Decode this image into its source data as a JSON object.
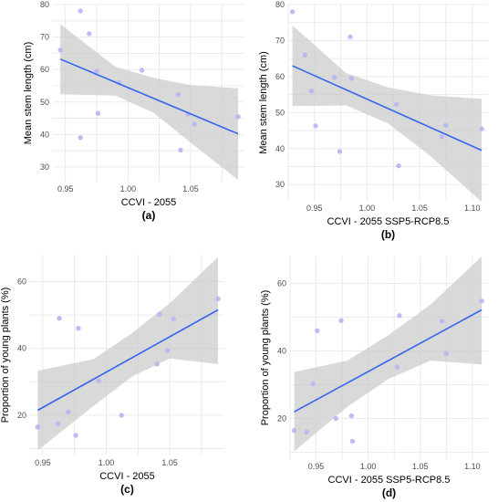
{
  "colors": {
    "point": "#b8b4f2",
    "fit_line": "#3366ee",
    "confidence_band": "#cccccc",
    "grid": "#e6e6e6",
    "panel_bg": "#ffffff"
  },
  "chart_data": [
    {
      "type": "scatter",
      "panel": "a",
      "caption": "(a)",
      "xlabel": "CCVI - 2055",
      "ylabel": "Mean stem length (cm)",
      "xlim": [
        0.94,
        1.093
      ],
      "ylim": [
        25.5,
        80
      ],
      "xticks": [
        0.95,
        1.0,
        1.05
      ],
      "xtick_labels": [
        "0.95",
        "1.00",
        "1.05"
      ],
      "yticks": [
        30,
        40,
        50,
        60,
        70,
        80
      ],
      "grid": true,
      "points": [
        [
          0.946,
          66
        ],
        [
          0.962,
          78
        ],
        [
          0.969,
          71
        ],
        [
          0.975,
          59.5
        ],
        [
          0.976,
          46.5
        ],
        [
          0.962,
          39
        ],
        [
          0.993,
          56
        ],
        [
          1.011,
          59.8
        ],
        [
          1.04,
          52.3
        ],
        [
          1.042,
          35.2
        ],
        [
          1.048,
          46.3
        ],
        [
          1.053,
          43.2
        ],
        [
          1.088,
          45.5
        ]
      ],
      "fit": {
        "x": [
          0.946,
          1.088
        ],
        "y": [
          63.2,
          40.2
        ]
      },
      "band": {
        "x": [
          0.946,
          0.99,
          1.02,
          1.05,
          1.088
        ],
        "lower": [
          52.4,
          52.0,
          46.8,
          37.5,
          26.0
        ],
        "upper": [
          74.0,
          60.8,
          57.5,
          55.2,
          54.2
        ]
      }
    },
    {
      "type": "scatter",
      "panel": "b",
      "caption": "(b)",
      "xlabel": "CCVI - 2055 SSP5-RCP8.5",
      "ylabel": "Mean stem length (cm)",
      "xlim": [
        0.925,
        1.115
      ],
      "ylim": [
        25.5,
        80
      ],
      "xticks": [
        0.95,
        1.0,
        1.05,
        1.1
      ],
      "xtick_labels": [
        "0.95",
        "1.00",
        "1.05",
        "1.10"
      ],
      "yticks": [
        30,
        40,
        50,
        60,
        70,
        80
      ],
      "grid": true,
      "points": [
        [
          0.929,
          78
        ],
        [
          0.941,
          66
        ],
        [
          0.947,
          56
        ],
        [
          0.951,
          46.3
        ],
        [
          0.969,
          59.8
        ],
        [
          0.974,
          39.2
        ],
        [
          0.984,
          71
        ],
        [
          0.985,
          59.5
        ],
        [
          1.028,
          52.3
        ],
        [
          1.03,
          35.2
        ],
        [
          1.071,
          43.3
        ],
        [
          1.075,
          46.5
        ],
        [
          1.109,
          45.5
        ]
      ],
      "fit": {
        "x": [
          0.929,
          1.109
        ],
        "y": [
          63,
          39.5
        ]
      },
      "band": {
        "x": [
          0.929,
          0.98,
          1.02,
          1.06,
          1.109
        ],
        "lower": [
          51.8,
          52.0,
          47.0,
          38.0,
          25.2
        ],
        "upper": [
          74.2,
          61.0,
          57.0,
          54.8,
          53.8
        ]
      }
    },
    {
      "type": "scatter",
      "panel": "c",
      "caption": "(c)",
      "xlabel": "CCVI - 2055",
      "ylabel": "Proportion of young plants (%)",
      "xlim": [
        0.94,
        1.093
      ],
      "ylim": [
        8,
        68
      ],
      "xticks": [
        0.95,
        1.0,
        1.05
      ],
      "xtick_labels": [
        "0.95",
        "1.00",
        "1.05"
      ],
      "yticks": [
        20,
        40,
        60
      ],
      "grid": true,
      "points": [
        [
          0.946,
          16.5
        ],
        [
          0.962,
          17.5
        ],
        [
          0.963,
          49
        ],
        [
          0.97,
          21
        ],
        [
          0.976,
          14
        ],
        [
          0.978,
          46
        ],
        [
          0.994,
          30.3
        ],
        [
          1.012,
          20
        ],
        [
          1.04,
          35.3
        ],
        [
          1.042,
          50.2
        ],
        [
          1.048,
          39.3
        ],
        [
          1.053,
          48.8
        ],
        [
          1.088,
          54.8
        ]
      ],
      "fit": {
        "x": [
          0.946,
          1.088
        ],
        "y": [
          21.5,
          51.5
        ]
      },
      "band": {
        "x": [
          0.946,
          0.99,
          1.02,
          1.05,
          1.088
        ],
        "lower": [
          9.5,
          22.8,
          31.5,
          37.0,
          35.3
        ],
        "upper": [
          33.3,
          36.8,
          44.5,
          53.5,
          67.3
        ]
      }
    },
    {
      "type": "scatter",
      "panel": "d",
      "caption": "(d)",
      "xlabel": "CCVI - 2055 SSP5-RCP8.5",
      "ylabel": "Proportion of young plants (%)",
      "xlim": [
        0.925,
        1.115
      ],
      "ylim": [
        8,
        68
      ],
      "xticks": [
        0.95,
        1.0,
        1.05,
        1.1
      ],
      "xtick_labels": [
        "0.95",
        "1.00",
        "1.05",
        "1.10"
      ],
      "yticks": [
        20,
        40,
        60
      ],
      "grid": true,
      "points": [
        [
          0.929,
          16.5
        ],
        [
          0.941,
          16
        ],
        [
          0.947,
          30.3
        ],
        [
          0.951,
          46
        ],
        [
          0.969,
          20
        ],
        [
          0.974,
          49
        ],
        [
          0.984,
          20.8
        ],
        [
          0.985,
          13.3
        ],
        [
          1.028,
          35.3
        ],
        [
          1.03,
          50.5
        ],
        [
          1.071,
          48.8
        ],
        [
          1.075,
          39.3
        ],
        [
          1.109,
          54.8
        ]
      ],
      "fit": {
        "x": [
          0.929,
          1.109
        ],
        "y": [
          22,
          52.2
        ]
      },
      "band": {
        "x": [
          0.929,
          0.98,
          1.02,
          1.06,
          1.109
        ],
        "lower": [
          10.3,
          23.5,
          31.8,
          37.2,
          36.0
        ],
        "upper": [
          33.8,
          37.2,
          44.8,
          53.8,
          68.0
        ]
      }
    }
  ]
}
